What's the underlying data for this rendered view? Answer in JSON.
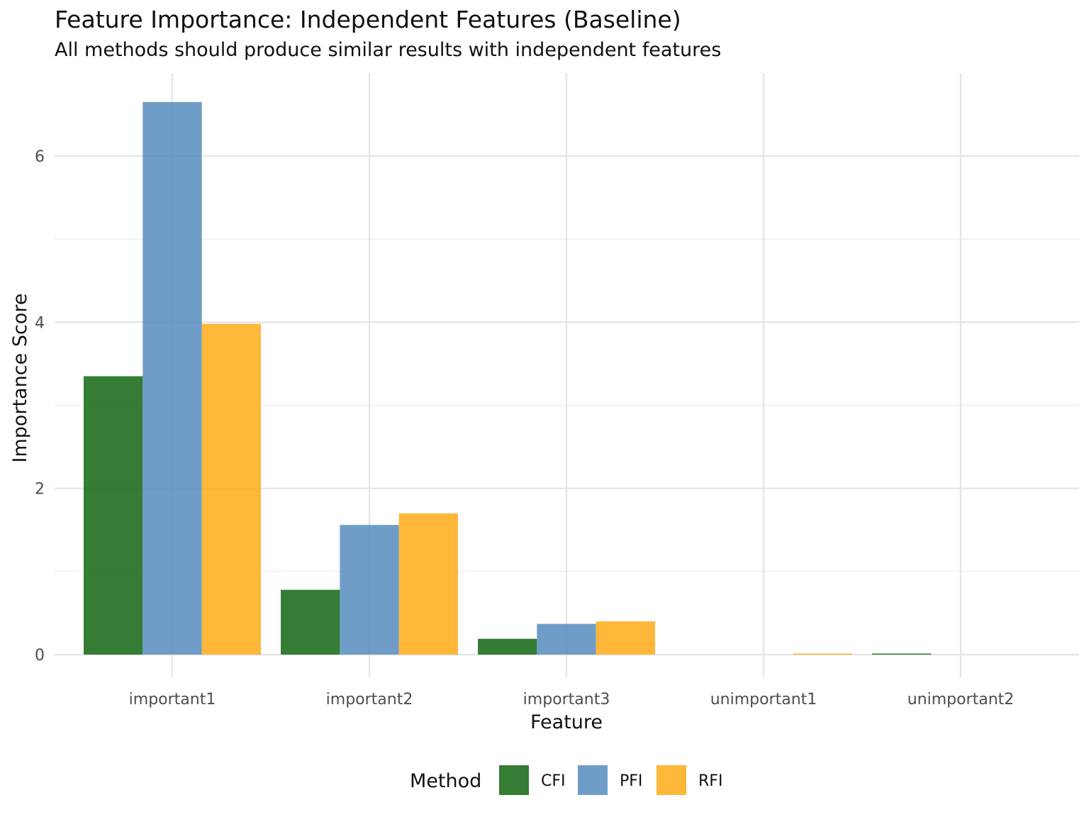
{
  "chart_data": {
    "type": "bar",
    "title": "Feature Importance: Independent Features (Baseline)",
    "subtitle": "All methods should produce similar results with independent features",
    "xlabel": "Feature",
    "ylabel": "Importance Score",
    "categories": [
      "important1",
      "important2",
      "important3",
      "unimportant1",
      "unimportant2"
    ],
    "series": [
      {
        "name": "CFI",
        "color": "#1f6e1f",
        "values": [
          3.35,
          0.78,
          0.19,
          0.0,
          0.01
        ]
      },
      {
        "name": "PFI",
        "color": "#5b8fbf",
        "values": [
          6.65,
          1.56,
          0.37,
          0.0,
          0.0
        ]
      },
      {
        "name": "RFI",
        "color": "#ffad1f",
        "values": [
          3.98,
          1.7,
          0.4,
          0.01,
          0.0
        ]
      }
    ],
    "ylim": [
      -0.2,
      7.0
    ],
    "yticks": [
      0,
      2,
      4,
      6
    ],
    "legend": {
      "title": "Method",
      "position": "bottom"
    },
    "grid": true
  }
}
